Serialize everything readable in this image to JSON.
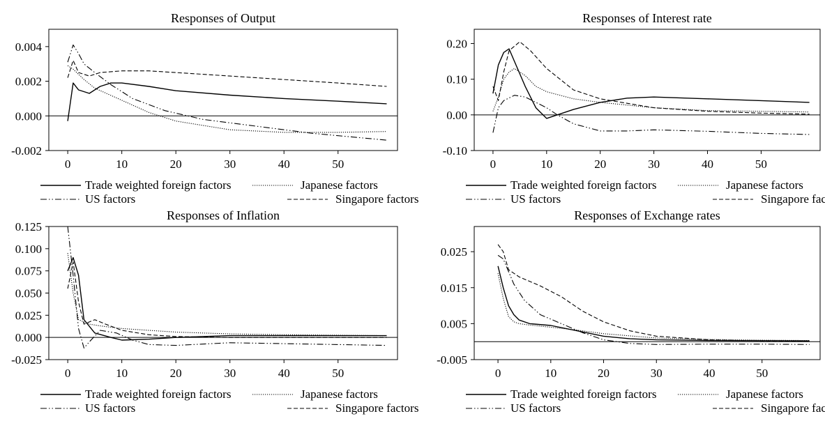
{
  "chart_data": [
    {
      "type": "line",
      "title": "Responses of Output",
      "xlabel": "",
      "ylabel": "",
      "xlim": [
        -3.5,
        61
      ],
      "ylim": [
        -0.002,
        0.005
      ],
      "x_ticks": [
        0,
        10,
        20,
        30,
        40,
        50
      ],
      "x_tick_labels": [
        "0",
        "10",
        "20",
        "30",
        "40",
        "50"
      ],
      "y_ticks": [
        -0.002,
        0,
        0.002,
        0.004
      ],
      "y_tick_labels": [
        "-0.002",
        "0.000",
        "0.002",
        "0.004"
      ],
      "zero_line": true,
      "grid": false,
      "legend_position": "bottom",
      "series": [
        {
          "name": "Trade weighted foreign factors",
          "style": "solid",
          "points": [
            [
              0,
              -0.0003
            ],
            [
              1,
              0.0019
            ],
            [
              2,
              0.0015
            ],
            [
              4,
              0.0013
            ],
            [
              6,
              0.0017
            ],
            [
              8,
              0.0019
            ],
            [
              10,
              0.0019
            ],
            [
              15,
              0.0017
            ],
            [
              20,
              0.00145
            ],
            [
              30,
              0.0012
            ],
            [
              40,
              0.001
            ],
            [
              50,
              0.00085
            ],
            [
              59,
              0.0007
            ]
          ]
        },
        {
          "name": "Japanese factors",
          "style": "dotted",
          "points": [
            [
              0,
              0.0029
            ],
            [
              1,
              0.0027
            ],
            [
              3,
              0.0021
            ],
            [
              5,
              0.0016
            ],
            [
              10,
              0.0009
            ],
            [
              15,
              0.0002
            ],
            [
              20,
              -0.0003
            ],
            [
              30,
              -0.0008
            ],
            [
              40,
              -0.00095
            ],
            [
              50,
              -0.00095
            ],
            [
              59,
              -0.0009
            ]
          ]
        },
        {
          "name": "US factors",
          "style": "dash-dot-dot",
          "points": [
            [
              0,
              0.0031
            ],
            [
              1,
              0.0041
            ],
            [
              2,
              0.0036
            ],
            [
              3,
              0.003
            ],
            [
              5,
              0.0025
            ],
            [
              8,
              0.0018
            ],
            [
              12,
              0.001
            ],
            [
              18,
              0.0003
            ],
            [
              25,
              -0.0002
            ],
            [
              35,
              -0.0006
            ],
            [
              45,
              -0.001
            ],
            [
              59,
              -0.0014
            ]
          ]
        },
        {
          "name": "Singapore factors",
          "style": "dashed",
          "points": [
            [
              0,
              0.0022
            ],
            [
              1,
              0.0032
            ],
            [
              2,
              0.0025
            ],
            [
              4,
              0.0023
            ],
            [
              6,
              0.0025
            ],
            [
              10,
              0.0026
            ],
            [
              15,
              0.0026
            ],
            [
              20,
              0.0025
            ],
            [
              30,
              0.0023
            ],
            [
              40,
              0.0021
            ],
            [
              50,
              0.0019
            ],
            [
              59,
              0.0017
            ]
          ]
        }
      ]
    },
    {
      "type": "line",
      "title": "Responses of Interest rate",
      "xlabel": "",
      "ylabel": "",
      "xlim": [
        -3.5,
        61
      ],
      "ylim": [
        -0.1,
        0.24
      ],
      "x_ticks": [
        0,
        10,
        20,
        30,
        40,
        50
      ],
      "x_tick_labels": [
        "0",
        "10",
        "20",
        "30",
        "40",
        "50"
      ],
      "y_ticks": [
        -0.1,
        0,
        0.1,
        0.2
      ],
      "y_tick_labels": [
        "-0.10",
        "0.00",
        "0.10",
        "0.20"
      ],
      "zero_line": true,
      "grid": false,
      "legend_position": "bottom",
      "series": [
        {
          "name": "Trade weighted foreign factors",
          "style": "solid",
          "points": [
            [
              0,
              0.06
            ],
            [
              1,
              0.14
            ],
            [
              2,
              0.175
            ],
            [
              3,
              0.185
            ],
            [
              4,
              0.15
            ],
            [
              6,
              0.08
            ],
            [
              8,
              0.02
            ],
            [
              10,
              -0.01
            ],
            [
              12,
              0.0
            ],
            [
              15,
              0.015
            ],
            [
              20,
              0.035
            ],
            [
              25,
              0.047
            ],
            [
              30,
              0.05
            ],
            [
              40,
              0.045
            ],
            [
              50,
              0.04
            ],
            [
              59,
              0.035
            ]
          ]
        },
        {
          "name": "Japanese factors",
          "style": "dotted",
          "points": [
            [
              0,
              0.01
            ],
            [
              1,
              0.05
            ],
            [
              2,
              0.1
            ],
            [
              3,
              0.12
            ],
            [
              4,
              0.13
            ],
            [
              6,
              0.11
            ],
            [
              8,
              0.08
            ],
            [
              10,
              0.065
            ],
            [
              15,
              0.045
            ],
            [
              20,
              0.035
            ],
            [
              30,
              0.02
            ],
            [
              40,
              0.012
            ],
            [
              50,
              0.01
            ],
            [
              59,
              0.008
            ]
          ]
        },
        {
          "name": "US factors",
          "style": "dash-dot-dot",
          "points": [
            [
              0,
              -0.05
            ],
            [
              1,
              0.02
            ],
            [
              2,
              0.04
            ],
            [
              4,
              0.055
            ],
            [
              6,
              0.05
            ],
            [
              8,
              0.035
            ],
            [
              10,
              0.02
            ],
            [
              12,
              0.0
            ],
            [
              15,
              -0.025
            ],
            [
              20,
              -0.045
            ],
            [
              25,
              -0.045
            ],
            [
              30,
              -0.042
            ],
            [
              40,
              -0.046
            ],
            [
              50,
              -0.052
            ],
            [
              59,
              -0.055
            ]
          ]
        },
        {
          "name": "Singapore factors",
          "style": "dashed",
          "points": [
            [
              0,
              0.08
            ],
            [
              1,
              0.04
            ],
            [
              2,
              0.12
            ],
            [
              3,
              0.18
            ],
            [
              5,
              0.205
            ],
            [
              7,
              0.18
            ],
            [
              10,
              0.13
            ],
            [
              15,
              0.07
            ],
            [
              20,
              0.045
            ],
            [
              30,
              0.02
            ],
            [
              40,
              0.01
            ],
            [
              50,
              0.005
            ],
            [
              59,
              0.002
            ]
          ]
        }
      ]
    },
    {
      "type": "line",
      "title": "Responses of Inflation",
      "xlabel": "",
      "ylabel": "",
      "xlim": [
        -3.5,
        61
      ],
      "ylim": [
        -0.025,
        0.125
      ],
      "x_ticks": [
        0,
        10,
        20,
        30,
        40,
        50
      ],
      "x_tick_labels": [
        "0",
        "10",
        "20",
        "30",
        "40",
        "50"
      ],
      "y_ticks": [
        -0.025,
        0,
        0.025,
        0.05,
        0.075,
        0.1,
        0.125
      ],
      "y_tick_labels": [
        "-0.025",
        "0.000",
        "0.025",
        "0.050",
        "0.075",
        "0.100",
        "0.125"
      ],
      "zero_line": true,
      "grid": false,
      "legend_position": "bottom",
      "series": [
        {
          "name": "Trade weighted foreign factors",
          "style": "solid",
          "points": [
            [
              0,
              0.075
            ],
            [
              1,
              0.09
            ],
            [
              2,
              0.07
            ],
            [
              3,
              0.02
            ],
            [
              5,
              0.005
            ],
            [
              8,
              0.0
            ],
            [
              10,
              -0.003
            ],
            [
              15,
              -0.002
            ],
            [
              20,
              0.0
            ],
            [
              30,
              0.002
            ],
            [
              40,
              0.002
            ],
            [
              59,
              0.002
            ]
          ]
        },
        {
          "name": "Japanese factors",
          "style": "dotted",
          "points": [
            [
              0,
              0.095
            ],
            [
              1,
              0.05
            ],
            [
              2,
              0.02
            ],
            [
              4,
              0.015
            ],
            [
              6,
              0.013
            ],
            [
              10,
              0.01
            ],
            [
              15,
              0.008
            ],
            [
              20,
              0.006
            ],
            [
              30,
              0.004
            ],
            [
              40,
              0.003
            ],
            [
              59,
              0.002
            ]
          ]
        },
        {
          "name": "US factors",
          "style": "dash-dot-dot",
          "points": [
            [
              0,
              0.125
            ],
            [
              1,
              0.07
            ],
            [
              2,
              0.01
            ],
            [
              3,
              -0.012
            ],
            [
              4,
              -0.005
            ],
            [
              6,
              0.008
            ],
            [
              9,
              0.005
            ],
            [
              12,
              -0.003
            ],
            [
              15,
              -0.008
            ],
            [
              20,
              -0.009
            ],
            [
              30,
              -0.006
            ],
            [
              40,
              -0.007
            ],
            [
              50,
              -0.008
            ],
            [
              59,
              -0.009
            ]
          ]
        },
        {
          "name": "Singapore factors",
          "style": "dashed",
          "points": [
            [
              0,
              0.055
            ],
            [
              1,
              0.085
            ],
            [
              2,
              0.04
            ],
            [
              3,
              0.015
            ],
            [
              5,
              0.02
            ],
            [
              7,
              0.015
            ],
            [
              10,
              0.008
            ],
            [
              15,
              0.003
            ],
            [
              20,
              0.001
            ],
            [
              30,
              0.0
            ],
            [
              40,
              0.0
            ],
            [
              59,
              0.0
            ]
          ]
        }
      ]
    },
    {
      "type": "line",
      "title": "Responses of Exchange rates",
      "xlabel": "",
      "ylabel": "",
      "xlim": [
        -4.5,
        61
      ],
      "ylim": [
        -0.005,
        0.032
      ],
      "x_ticks": [
        0,
        10,
        20,
        30,
        40,
        50
      ],
      "x_tick_labels": [
        "0",
        "10",
        "20",
        "30",
        "40",
        "50"
      ],
      "y_ticks": [
        -0.005,
        0.005,
        0.015,
        0.025
      ],
      "y_tick_labels": [
        "-0.005",
        "0.005",
        "0.015",
        "0.025"
      ],
      "zero_line": true,
      "grid": false,
      "legend_position": "bottom",
      "series": [
        {
          "name": "Trade weighted foreign factors",
          "style": "solid",
          "points": [
            [
              0,
              0.021
            ],
            [
              1,
              0.015
            ],
            [
              2,
              0.01
            ],
            [
              3,
              0.0075
            ],
            [
              4,
              0.006
            ],
            [
              6,
              0.005
            ],
            [
              10,
              0.0045
            ],
            [
              15,
              0.003
            ],
            [
              20,
              0.0015
            ],
            [
              25,
              0.0008
            ],
            [
              30,
              0.0005
            ],
            [
              40,
              0.0003
            ],
            [
              59,
              0.0002
            ]
          ]
        },
        {
          "name": "Japanese factors",
          "style": "dotted",
          "points": [
            [
              0,
              0.019
            ],
            [
              1,
              0.012
            ],
            [
              2,
              0.007
            ],
            [
              3,
              0.0055
            ],
            [
              4,
              0.005
            ],
            [
              6,
              0.0046
            ],
            [
              10,
              0.004
            ],
            [
              15,
              0.0032
            ],
            [
              20,
              0.0022
            ],
            [
              30,
              0.001
            ],
            [
              40,
              0.0006
            ],
            [
              50,
              0.0004
            ],
            [
              59,
              0.0003
            ]
          ]
        },
        {
          "name": "US factors",
          "style": "dash-dot-dot",
          "points": [
            [
              0,
              0.024
            ],
            [
              1,
              0.023
            ],
            [
              3,
              0.016
            ],
            [
              5,
              0.0115
            ],
            [
              8,
              0.0075
            ],
            [
              12,
              0.005
            ],
            [
              16,
              0.0025
            ],
            [
              20,
              0.0005
            ],
            [
              25,
              -0.0005
            ],
            [
              30,
              -0.0008
            ],
            [
              40,
              -0.0007
            ],
            [
              50,
              -0.0007
            ],
            [
              59,
              -0.0008
            ]
          ]
        },
        {
          "name": "Singapore factors",
          "style": "dashed",
          "points": [
            [
              0,
              0.027
            ],
            [
              1,
              0.025
            ],
            [
              2,
              0.02
            ],
            [
              4,
              0.018
            ],
            [
              8,
              0.0155
            ],
            [
              12,
              0.0125
            ],
            [
              16,
              0.0085
            ],
            [
              20,
              0.0055
            ],
            [
              25,
              0.003
            ],
            [
              30,
              0.0015
            ],
            [
              40,
              0.0005
            ],
            [
              50,
              0.0002
            ],
            [
              59,
              0.0001
            ]
          ]
        }
      ]
    }
  ]
}
